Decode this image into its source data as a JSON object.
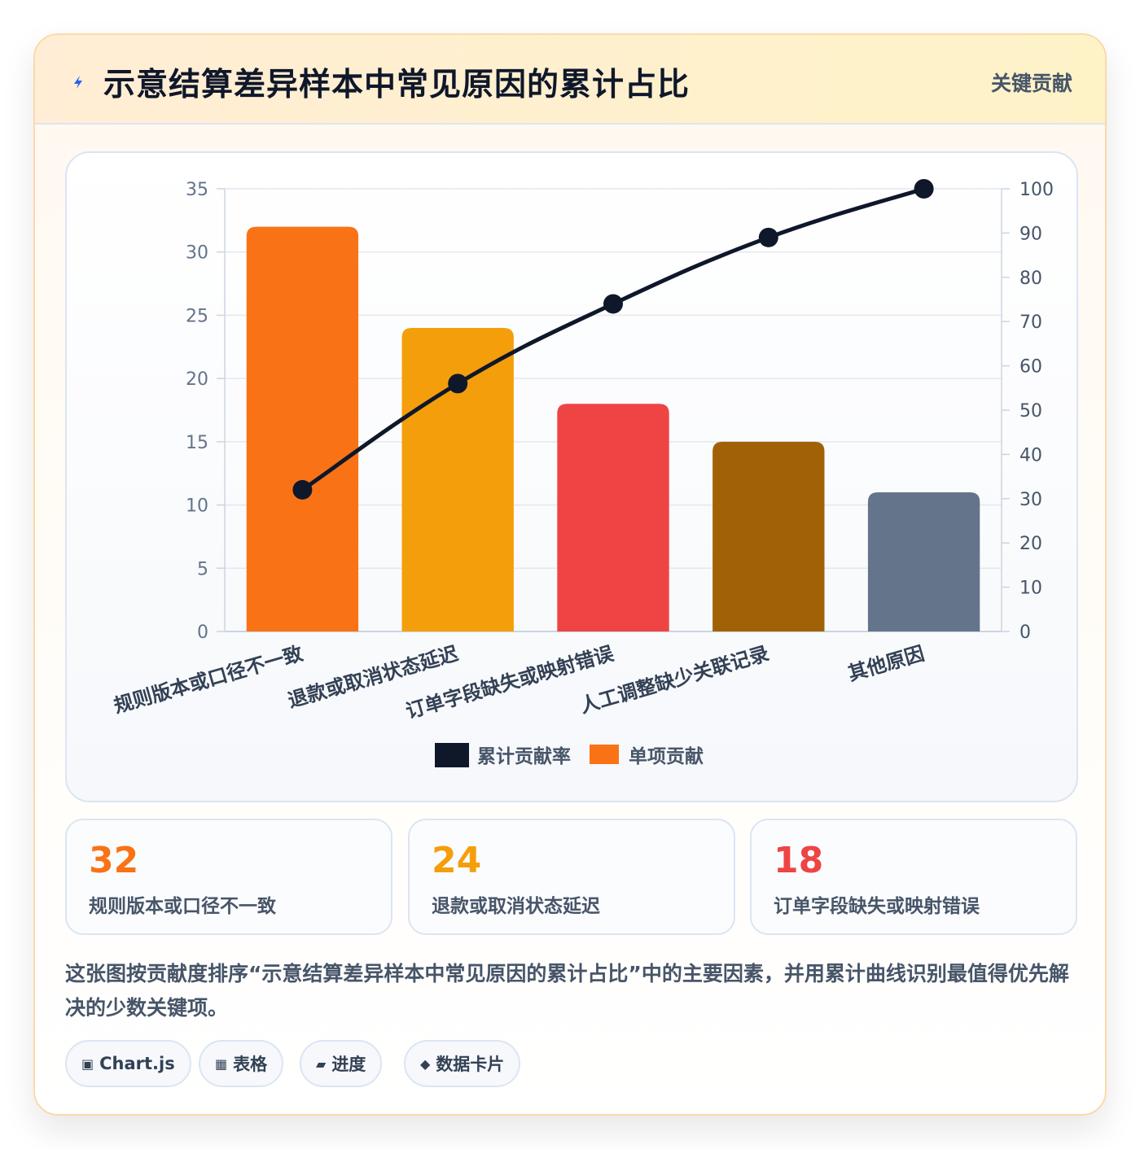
{
  "header": {
    "title": "示意结算差异样本中常见原因的累计占比",
    "tag": "关键贡献",
    "icon": "lightning-bolt-icon"
  },
  "chart_data": {
    "type": "bar",
    "categories": [
      "规则版本或口径不一致",
      "退款或取消状态延迟",
      "订单字段缺失或映射错误",
      "人工调整缺少关联记录",
      "其他原因"
    ],
    "series": [
      {
        "name": "单项贡献",
        "type": "bar",
        "axis": "left",
        "values": [
          32,
          24,
          18,
          15,
          11
        ],
        "colors": [
          "#f97316",
          "#f59e0b",
          "#ef4444",
          "#a16207",
          "#64748b"
        ]
      },
      {
        "name": "累计贡献率",
        "type": "line",
        "axis": "right",
        "values": [
          32,
          56,
          74,
          89,
          100
        ],
        "color": "#0f172a"
      }
    ],
    "left_axis": {
      "ylim": [
        0,
        35
      ],
      "ticks": [
        0,
        5,
        10,
        15,
        20,
        25,
        30,
        35
      ]
    },
    "right_axis": {
      "ylim": [
        0,
        100
      ],
      "ticks": [
        0,
        10,
        20,
        30,
        40,
        50,
        60,
        70,
        80,
        90,
        100
      ]
    },
    "legend": [
      "累计贡献率",
      "单项贡献"
    ],
    "legend_position": "bottom",
    "grid": true
  },
  "stats": [
    {
      "value": "32",
      "label": "规则版本或口径不一致",
      "color": "#f97316"
    },
    {
      "value": "24",
      "label": "退款或取消状态延迟",
      "color": "#f59e0b"
    },
    {
      "value": "18",
      "label": "订单字段缺失或映射错误",
      "color": "#ef4444"
    }
  ],
  "description": "这张图按贡献度排序“示意结算差异样本中常见原因的累计占比”中的主要因素，并用累计曲线识别最值得优先解决的少数关键项。",
  "chips": [
    {
      "icon": "▣",
      "icon_name": "chart-icon",
      "label": "Chart.js"
    },
    {
      "icon": "▦",
      "icon_name": "table-icon",
      "label": "表格"
    },
    {
      "icon": "▰",
      "icon_name": "progress-icon",
      "label": "进度"
    },
    {
      "icon": "◆",
      "icon_name": "data-card-icon",
      "label": "数据卡片"
    }
  ]
}
